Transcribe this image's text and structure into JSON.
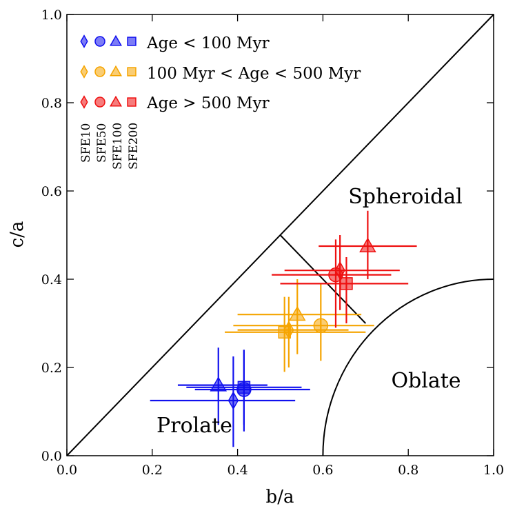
{
  "chart_data": {
    "type": "scatter",
    "xlabel": "b/a",
    "ylabel": "c/a",
    "xlim": [
      0.0,
      1.0
    ],
    "ylim": [
      0.0,
      1.0
    ],
    "xticks": [
      "0.0",
      "0.2",
      "0.4",
      "0.6",
      "0.8",
      "1.0"
    ],
    "yticks": [
      "0.0",
      "0.2",
      "0.4",
      "0.6",
      "0.8",
      "1.0"
    ],
    "grid": false,
    "legend_position": "top-left",
    "markers": [
      {
        "symbol": "diamond",
        "label": "SFE10"
      },
      {
        "symbol": "circle",
        "label": "SFE50"
      },
      {
        "symbol": "triangle",
        "label": "SFE100"
      },
      {
        "symbol": "square",
        "label": "SFE200"
      }
    ],
    "series": [
      {
        "name": "Age < 100 Myr",
        "color": "#1010ee",
        "points": [
          {
            "sfe": "SFE10",
            "x": 0.39,
            "y": 0.125,
            "xerr": [
              0.195,
              0.535
            ],
            "yerr": [
              0.02,
              0.225
            ]
          },
          {
            "sfe": "SFE50",
            "x": 0.415,
            "y": 0.15,
            "xerr": [
              0.3,
              0.57
            ],
            "yerr": [
              0.055,
              0.24
            ]
          },
          {
            "sfe": "SFE100",
            "x": 0.355,
            "y": 0.16,
            "xerr": [
              0.26,
              0.47
            ],
            "yerr": [
              0.07,
              0.245
            ]
          },
          {
            "sfe": "SFE200",
            "x": 0.415,
            "y": 0.155,
            "xerr": [
              0.28,
              0.55
            ],
            "yerr": [
              0.07,
              0.24
            ]
          }
        ]
      },
      {
        "name": "100 Myr < Age < 500 Myr",
        "color": "#f5a400",
        "points": [
          {
            "sfe": "SFE10",
            "x": 0.52,
            "y": 0.285,
            "xerr": [
              0.4,
              0.66
            ],
            "yerr": [
              0.2,
              0.36
            ]
          },
          {
            "sfe": "SFE50",
            "x": 0.595,
            "y": 0.295,
            "xerr": [
              0.39,
              0.72
            ],
            "yerr": [
              0.215,
              0.39
            ]
          },
          {
            "sfe": "SFE100",
            "x": 0.54,
            "y": 0.32,
            "xerr": [
              0.4,
              0.69
            ],
            "yerr": [
              0.23,
              0.4
            ]
          },
          {
            "sfe": "SFE200",
            "x": 0.51,
            "y": 0.28,
            "xerr": [
              0.37,
              0.7
            ],
            "yerr": [
              0.19,
              0.36
            ]
          }
        ]
      },
      {
        "name": "Age > 500 Myr",
        "color": "#ee1010",
        "points": [
          {
            "sfe": "SFE10",
            "x": 0.64,
            "y": 0.42,
            "xerr": [
              0.51,
              0.78
            ],
            "yerr": [
              0.33,
              0.5
            ]
          },
          {
            "sfe": "SFE50",
            "x": 0.63,
            "y": 0.41,
            "xerr": [
              0.48,
              0.76
            ],
            "yerr": [
              0.29,
              0.49
            ]
          },
          {
            "sfe": "SFE100",
            "x": 0.705,
            "y": 0.475,
            "xerr": [
              0.59,
              0.82
            ],
            "yerr": [
              0.4,
              0.555
            ]
          },
          {
            "sfe": "SFE200",
            "x": 0.655,
            "y": 0.39,
            "xerr": [
              0.5,
              0.8
            ],
            "yerr": [
              0.3,
              0.45
            ]
          }
        ]
      }
    ],
    "annotations": [
      "Spheroidal",
      "Oblate",
      "Prolate"
    ],
    "regions": {
      "diagonal": {
        "from": [
          0.0,
          0.0
        ],
        "to": [
          1.0,
          1.0
        ]
      },
      "spheroidal_boundary": {
        "from": [
          0.5,
          0.5
        ],
        "to": [
          0.7,
          0.3
        ]
      },
      "oblate_arc": {
        "center": [
          1.0,
          0.0
        ],
        "radius": 0.4,
        "scale_y": 1.0
      }
    }
  }
}
